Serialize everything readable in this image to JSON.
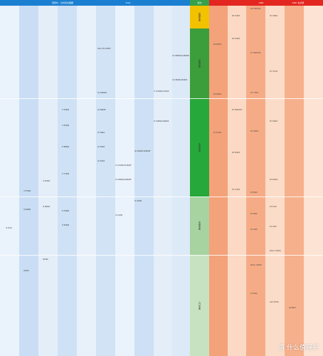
{
  "header": {
    "left_label": "英特尔 - 台式机处理器",
    "center_label": "Intel",
    "tier_label": "档次",
    "tier_sub": "性能天梯",
    "right_label": "AMD",
    "right_label2": "AMD 台式机"
  },
  "colors": {
    "intel_header": "#1b7fd1",
    "tier_header": "#35a24a",
    "amd_header": "#e3261f",
    "tier_top": "#f2c200",
    "tier_high": "#3c9e3b",
    "tier_main": "#27a83a",
    "tier_mid": "#a6d3a0",
    "tier_low": "#c7e2c0"
  },
  "tiers": [
    {
      "label": "旗舰性能"
    },
    {
      "label": "高端性能"
    },
    {
      "label": "主流性能"
    },
    {
      "label": "中端性能"
    },
    {
      "label": "入门性能"
    }
  ],
  "intel_items": [
    {
      "t": "i9 13900KS/14900KS"
    },
    {
      "t": "i9 13900K/14900K"
    },
    {
      "t": "i7 14700K/13700K"
    },
    {
      "t": "Xeon W7-2495X"
    },
    {
      "t": "i9 12900KS"
    },
    {
      "t": "i5 13600K/14600K"
    },
    {
      "t": "i9 12900K/12900KF"
    },
    {
      "t": "i7 12700K/12700KF"
    },
    {
      "t": "i5 12600K/12600KF"
    },
    {
      "t": "i9 7980XE"
    },
    {
      "t": "i9 7960X"
    },
    {
      "t": "i9 7940X"
    },
    {
      "t": "i9 7920X"
    },
    {
      "t": "i7 7820X"
    },
    {
      "t": "i5 12400"
    },
    {
      "t": "i3 12100"
    },
    {
      "t": "i7 8700K"
    },
    {
      "t": "i5 8600K"
    },
    {
      "t": "i7 7700K"
    },
    {
      "t": "i5 7600K"
    },
    {
      "t": "i3 8350K"
    },
    {
      "t": "i7 6700K"
    },
    {
      "t": "i5 6600K"
    },
    {
      "t": "i7 4790K"
    },
    {
      "t": "i5 4690K"
    },
    {
      "t": "i3 4170"
    },
    {
      "t": "G4560"
    },
    {
      "t": "G3930"
    }
  ],
  "amd_items": [
    {
      "t": "R9 7950X3D"
    },
    {
      "t": "R9 7950X"
    },
    {
      "t": "TR 7980X"
    },
    {
      "t": "TR 7970X"
    },
    {
      "t": "R9 7900X"
    },
    {
      "t": "R7 7800X3D"
    },
    {
      "t": "TR 3990X"
    },
    {
      "t": "R9 5950X"
    },
    {
      "t": "R9 5900X"
    },
    {
      "t": "R7 7700X"
    },
    {
      "t": "R7 5800X3D"
    },
    {
      "t": "R5 7600X"
    },
    {
      "t": "R7 5700X"
    },
    {
      "t": "R5 5600X"
    },
    {
      "t": "R5 5600G"
    },
    {
      "t": "R5 3600"
    },
    {
      "t": "R7 2700X"
    },
    {
      "t": "R5 2600"
    },
    {
      "t": "R3 3100"
    },
    {
      "t": "R5 1600"
    },
    {
      "t": "R3 1200"
    },
    {
      "t": "Athlon 3000G"
    },
    {
      "t": "Athlon 200GE"
    },
    {
      "t": "FX 8350"
    },
    {
      "t": "A10 7870K"
    },
    {
      "t": "A8 9600"
    }
  ],
  "watermark": "值 什么值得买"
}
